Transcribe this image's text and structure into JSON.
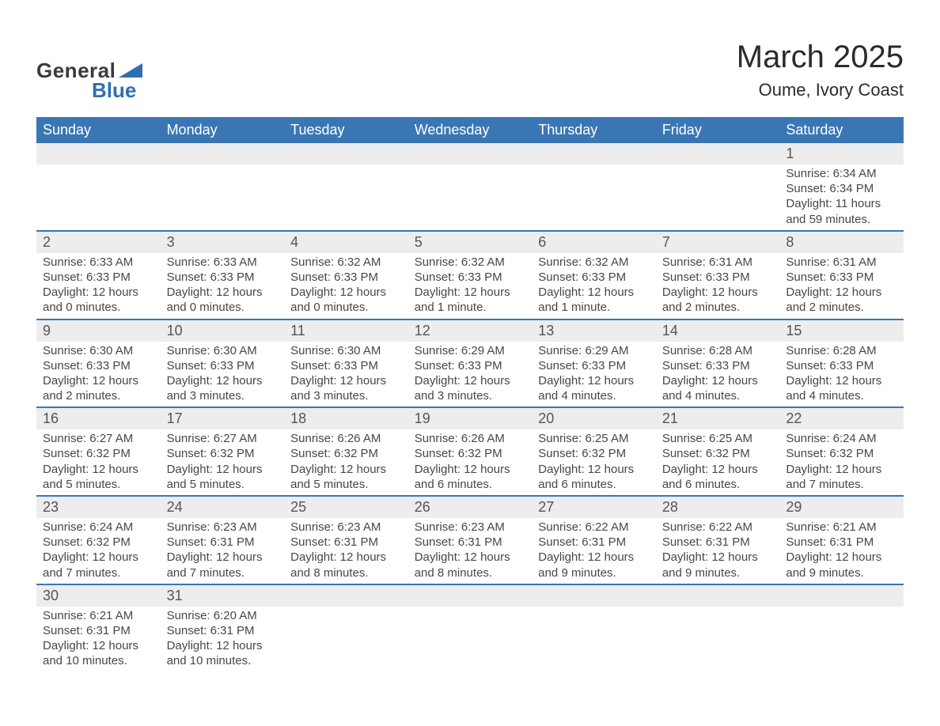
{
  "logo": {
    "word1": "General",
    "word2": "Blue",
    "triangle_color": "#2f6fb0"
  },
  "title": "March 2025",
  "location": "Oume, Ivory Coast",
  "colors": {
    "header_bg": "#3a76b4",
    "header_text": "#ffffff",
    "daynum_bg": "#ededed",
    "row_divider": "#3a76b4",
    "text": "#474747"
  },
  "day_headers": [
    "Sunday",
    "Monday",
    "Tuesday",
    "Wednesday",
    "Thursday",
    "Friday",
    "Saturday"
  ],
  "weeks": [
    [
      null,
      null,
      null,
      null,
      null,
      null,
      {
        "n": "1",
        "sunrise": "Sunrise: 6:34 AM",
        "sunset": "Sunset: 6:34 PM",
        "daylight": "Daylight: 11 hours and 59 minutes."
      }
    ],
    [
      {
        "n": "2",
        "sunrise": "Sunrise: 6:33 AM",
        "sunset": "Sunset: 6:33 PM",
        "daylight": "Daylight: 12 hours and 0 minutes."
      },
      {
        "n": "3",
        "sunrise": "Sunrise: 6:33 AM",
        "sunset": "Sunset: 6:33 PM",
        "daylight": "Daylight: 12 hours and 0 minutes."
      },
      {
        "n": "4",
        "sunrise": "Sunrise: 6:32 AM",
        "sunset": "Sunset: 6:33 PM",
        "daylight": "Daylight: 12 hours and 0 minutes."
      },
      {
        "n": "5",
        "sunrise": "Sunrise: 6:32 AM",
        "sunset": "Sunset: 6:33 PM",
        "daylight": "Daylight: 12 hours and 1 minute."
      },
      {
        "n": "6",
        "sunrise": "Sunrise: 6:32 AM",
        "sunset": "Sunset: 6:33 PM",
        "daylight": "Daylight: 12 hours and 1 minute."
      },
      {
        "n": "7",
        "sunrise": "Sunrise: 6:31 AM",
        "sunset": "Sunset: 6:33 PM",
        "daylight": "Daylight: 12 hours and 2 minutes."
      },
      {
        "n": "8",
        "sunrise": "Sunrise: 6:31 AM",
        "sunset": "Sunset: 6:33 PM",
        "daylight": "Daylight: 12 hours and 2 minutes."
      }
    ],
    [
      {
        "n": "9",
        "sunrise": "Sunrise: 6:30 AM",
        "sunset": "Sunset: 6:33 PM",
        "daylight": "Daylight: 12 hours and 2 minutes."
      },
      {
        "n": "10",
        "sunrise": "Sunrise: 6:30 AM",
        "sunset": "Sunset: 6:33 PM",
        "daylight": "Daylight: 12 hours and 3 minutes."
      },
      {
        "n": "11",
        "sunrise": "Sunrise: 6:30 AM",
        "sunset": "Sunset: 6:33 PM",
        "daylight": "Daylight: 12 hours and 3 minutes."
      },
      {
        "n": "12",
        "sunrise": "Sunrise: 6:29 AM",
        "sunset": "Sunset: 6:33 PM",
        "daylight": "Daylight: 12 hours and 3 minutes."
      },
      {
        "n": "13",
        "sunrise": "Sunrise: 6:29 AM",
        "sunset": "Sunset: 6:33 PM",
        "daylight": "Daylight: 12 hours and 4 minutes."
      },
      {
        "n": "14",
        "sunrise": "Sunrise: 6:28 AM",
        "sunset": "Sunset: 6:33 PM",
        "daylight": "Daylight: 12 hours and 4 minutes."
      },
      {
        "n": "15",
        "sunrise": "Sunrise: 6:28 AM",
        "sunset": "Sunset: 6:33 PM",
        "daylight": "Daylight: 12 hours and 4 minutes."
      }
    ],
    [
      {
        "n": "16",
        "sunrise": "Sunrise: 6:27 AM",
        "sunset": "Sunset: 6:32 PM",
        "daylight": "Daylight: 12 hours and 5 minutes."
      },
      {
        "n": "17",
        "sunrise": "Sunrise: 6:27 AM",
        "sunset": "Sunset: 6:32 PM",
        "daylight": "Daylight: 12 hours and 5 minutes."
      },
      {
        "n": "18",
        "sunrise": "Sunrise: 6:26 AM",
        "sunset": "Sunset: 6:32 PM",
        "daylight": "Daylight: 12 hours and 5 minutes."
      },
      {
        "n": "19",
        "sunrise": "Sunrise: 6:26 AM",
        "sunset": "Sunset: 6:32 PM",
        "daylight": "Daylight: 12 hours and 6 minutes."
      },
      {
        "n": "20",
        "sunrise": "Sunrise: 6:25 AM",
        "sunset": "Sunset: 6:32 PM",
        "daylight": "Daylight: 12 hours and 6 minutes."
      },
      {
        "n": "21",
        "sunrise": "Sunrise: 6:25 AM",
        "sunset": "Sunset: 6:32 PM",
        "daylight": "Daylight: 12 hours and 6 minutes."
      },
      {
        "n": "22",
        "sunrise": "Sunrise: 6:24 AM",
        "sunset": "Sunset: 6:32 PM",
        "daylight": "Daylight: 12 hours and 7 minutes."
      }
    ],
    [
      {
        "n": "23",
        "sunrise": "Sunrise: 6:24 AM",
        "sunset": "Sunset: 6:32 PM",
        "daylight": "Daylight: 12 hours and 7 minutes."
      },
      {
        "n": "24",
        "sunrise": "Sunrise: 6:23 AM",
        "sunset": "Sunset: 6:31 PM",
        "daylight": "Daylight: 12 hours and 7 minutes."
      },
      {
        "n": "25",
        "sunrise": "Sunrise: 6:23 AM",
        "sunset": "Sunset: 6:31 PM",
        "daylight": "Daylight: 12 hours and 8 minutes."
      },
      {
        "n": "26",
        "sunrise": "Sunrise: 6:23 AM",
        "sunset": "Sunset: 6:31 PM",
        "daylight": "Daylight: 12 hours and 8 minutes."
      },
      {
        "n": "27",
        "sunrise": "Sunrise: 6:22 AM",
        "sunset": "Sunset: 6:31 PM",
        "daylight": "Daylight: 12 hours and 9 minutes."
      },
      {
        "n": "28",
        "sunrise": "Sunrise: 6:22 AM",
        "sunset": "Sunset: 6:31 PM",
        "daylight": "Daylight: 12 hours and 9 minutes."
      },
      {
        "n": "29",
        "sunrise": "Sunrise: 6:21 AM",
        "sunset": "Sunset: 6:31 PM",
        "daylight": "Daylight: 12 hours and 9 minutes."
      }
    ],
    [
      {
        "n": "30",
        "sunrise": "Sunrise: 6:21 AM",
        "sunset": "Sunset: 6:31 PM",
        "daylight": "Daylight: 12 hours and 10 minutes."
      },
      {
        "n": "31",
        "sunrise": "Sunrise: 6:20 AM",
        "sunset": "Sunset: 6:31 PM",
        "daylight": "Daylight: 12 hours and 10 minutes."
      },
      null,
      null,
      null,
      null,
      null
    ]
  ]
}
